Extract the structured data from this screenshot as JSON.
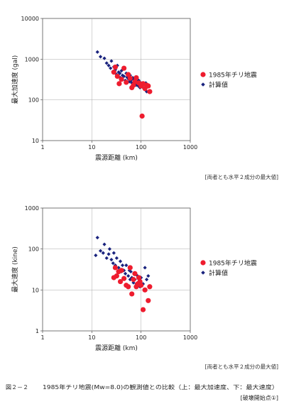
{
  "chart_data": [
    {
      "type": "scatter",
      "xlabel": "震源距離 (km)",
      "ylabel": "最大加速度 (gal)",
      "xscale": "log",
      "yscale": "log",
      "xlim": [
        1,
        1000
      ],
      "ylim": [
        10,
        10000
      ],
      "x_ticks": [
        "1",
        "10",
        "100",
        "1000"
      ],
      "y_ticks": [
        "10",
        "100",
        "1000",
        "10000"
      ],
      "grid": true,
      "legend": "right",
      "note": "[両者とも水平２成分の最大値]",
      "series": [
        {
          "name": "1985年チリ地震",
          "marker": "circle",
          "color": "#ee1c2e",
          "points": [
            [
              30,
              640
            ],
            [
              33,
              380
            ],
            [
              36,
              250
            ],
            [
              40,
              320
            ],
            [
              45,
              600
            ],
            [
              50,
              270
            ],
            [
              55,
              420
            ],
            [
              60,
              340
            ],
            [
              65,
              200
            ],
            [
              70,
              230
            ],
            [
              75,
              280
            ],
            [
              80,
              350
            ],
            [
              90,
              260
            ],
            [
              100,
              220
            ],
            [
              110,
              250
            ],
            [
              120,
              190
            ],
            [
              130,
              230
            ],
            [
              140,
              220
            ],
            [
              150,
              160
            ],
            [
              105,
              40
            ],
            [
              28,
              480
            ]
          ]
        },
        {
          "name": "計算値",
          "marker": "diamond",
          "color": "#1a237e",
          "points": [
            [
              13,
              1500
            ],
            [
              15,
              1150
            ],
            [
              18,
              1050
            ],
            [
              20,
              800
            ],
            [
              22,
              700
            ],
            [
              24,
              600
            ],
            [
              25,
              900
            ],
            [
              27,
              500
            ],
            [
              28,
              650
            ],
            [
              30,
              550
            ],
            [
              32,
              420
            ],
            [
              33,
              700
            ],
            [
              35,
              480
            ],
            [
              37,
              450
            ],
            [
              38,
              350
            ],
            [
              40,
              520
            ],
            [
              42,
              400
            ],
            [
              45,
              380
            ],
            [
              48,
              300
            ],
            [
              50,
              450
            ],
            [
              52,
              360
            ],
            [
              55,
              330
            ],
            [
              58,
              280
            ],
            [
              60,
              400
            ],
            [
              62,
              300
            ],
            [
              65,
              260
            ],
            [
              68,
              350
            ],
            [
              70,
              320
            ],
            [
              72,
              240
            ],
            [
              75,
              300
            ],
            [
              78,
              270
            ],
            [
              80,
              230
            ],
            [
              85,
              280
            ],
            [
              88,
              220
            ],
            [
              90,
              300
            ],
            [
              95,
              200
            ],
            [
              100,
              260
            ],
            [
              105,
              220
            ],
            [
              110,
              200
            ],
            [
              120,
              180
            ],
            [
              125,
              260
            ],
            [
              130,
              160
            ]
          ]
        }
      ]
    },
    {
      "type": "scatter",
      "xlabel": "震源距離 (km)",
      "ylabel": "最大速度 (kine)",
      "xscale": "log",
      "yscale": "log",
      "xlim": [
        1,
        1000
      ],
      "ylim": [
        1,
        1000
      ],
      "x_ticks": [
        "1",
        "10",
        "100",
        "1000"
      ],
      "y_ticks": [
        "1",
        "10",
        "100",
        "1000"
      ],
      "grid": true,
      "legend": "right",
      "note": "[両者とも水平２成分の最大値]",
      "series": [
        {
          "name": "1985年チリ地震",
          "marker": "circle",
          "color": "#ee1c2e",
          "points": [
            [
              30,
              35
            ],
            [
              32,
              22
            ],
            [
              35,
              28
            ],
            [
              38,
              16
            ],
            [
              40,
              30
            ],
            [
              45,
              19
            ],
            [
              50,
              13
            ],
            [
              55,
              12
            ],
            [
              60,
              35
            ],
            [
              65,
              8
            ],
            [
              70,
              18
            ],
            [
              75,
              25
            ],
            [
              80,
              12
            ],
            [
              85,
              14
            ],
            [
              90,
              20
            ],
            [
              95,
              16
            ],
            [
              100,
              13
            ],
            [
              110,
              3.3
            ],
            [
              120,
              10
            ],
            [
              140,
              5.5
            ],
            [
              150,
              12
            ],
            [
              28,
              20
            ]
          ]
        },
        {
          "name": "計算値",
          "marker": "diamond",
          "color": "#1a237e",
          "points": [
            [
              12,
              70
            ],
            [
              13,
              190
            ],
            [
              15,
              90
            ],
            [
              17,
              80
            ],
            [
              18,
              130
            ],
            [
              20,
              60
            ],
            [
              22,
              75
            ],
            [
              23,
              100
            ],
            [
              25,
              55
            ],
            [
              27,
              45
            ],
            [
              28,
              80
            ],
            [
              30,
              40
            ],
            [
              32,
              60
            ],
            [
              35,
              35
            ],
            [
              38,
              50
            ],
            [
              40,
              28
            ],
            [
              42,
              40
            ],
            [
              45,
              30
            ],
            [
              48,
              25
            ],
            [
              50,
              40
            ],
            [
              55,
              22
            ],
            [
              58,
              30
            ],
            [
              60,
              18
            ],
            [
              62,
              28
            ],
            [
              65,
              20
            ],
            [
              70,
              15
            ],
            [
              72,
              26
            ],
            [
              75,
              18
            ],
            [
              80,
              14
            ],
            [
              85,
              22
            ],
            [
              90,
              16
            ],
            [
              95,
              12
            ],
            [
              100,
              20
            ],
            [
              110,
              14
            ],
            [
              120,
              35
            ],
            [
              130,
              18
            ],
            [
              140,
              22
            ]
          ]
        }
      ]
    }
  ],
  "caption": {
    "label": "図２－２",
    "text": "1985年チリ地震(Mw=8.0)の観測値との比較（上：最大加速度、下：最大速度）",
    "sub": "[破壊開始点①]"
  }
}
